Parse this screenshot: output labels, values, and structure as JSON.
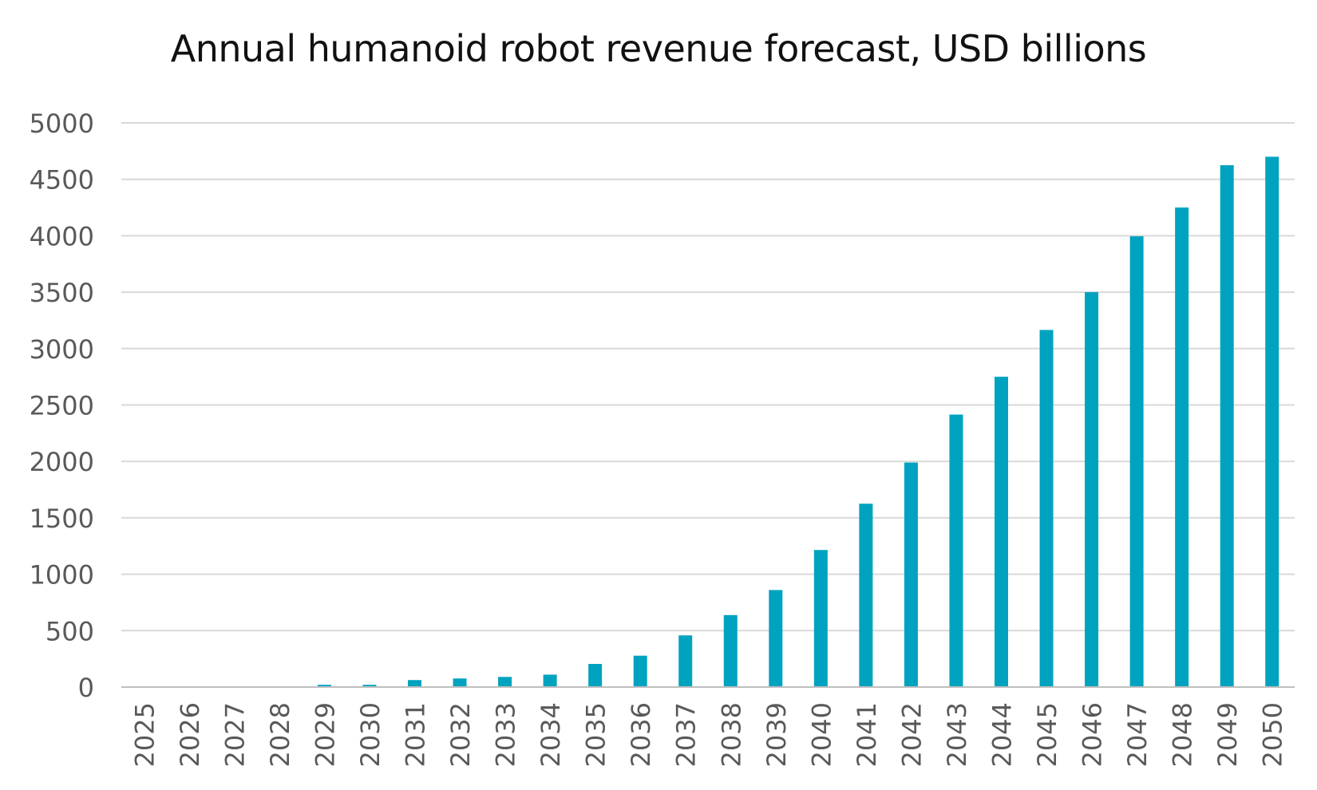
{
  "chart_data": {
    "type": "bar",
    "title": "Annual humanoid robot revenue forecast, USD billions",
    "xlabel": "",
    "ylabel": "",
    "categories": [
      "2025",
      "2026",
      "2027",
      "2028",
      "2029",
      "2030",
      "2031",
      "2032",
      "2033",
      "2034",
      "2035",
      "2036",
      "2037",
      "2038",
      "2039",
      "2040",
      "2041",
      "2042",
      "2043",
      "2044",
      "2045",
      "2046",
      "2047",
      "2048",
      "2049",
      "2050"
    ],
    "values": [
      1,
      2,
      3,
      4,
      20,
      20,
      62,
      76,
      90,
      110,
      205,
      278,
      458,
      638,
      860,
      1215,
      1625,
      1990,
      2415,
      2750,
      3165,
      3500,
      3995,
      4250,
      4625,
      4700
    ],
    "ylim": [
      0,
      5000
    ],
    "yticks": [
      0,
      500,
      1000,
      1500,
      2000,
      2500,
      3000,
      3500,
      4000,
      4500,
      5000
    ],
    "grid": true,
    "legend": "none",
    "bar_color": "#00A3BF",
    "grid_color": "#D9D9D9",
    "axis_color": "#BFBFBF"
  }
}
